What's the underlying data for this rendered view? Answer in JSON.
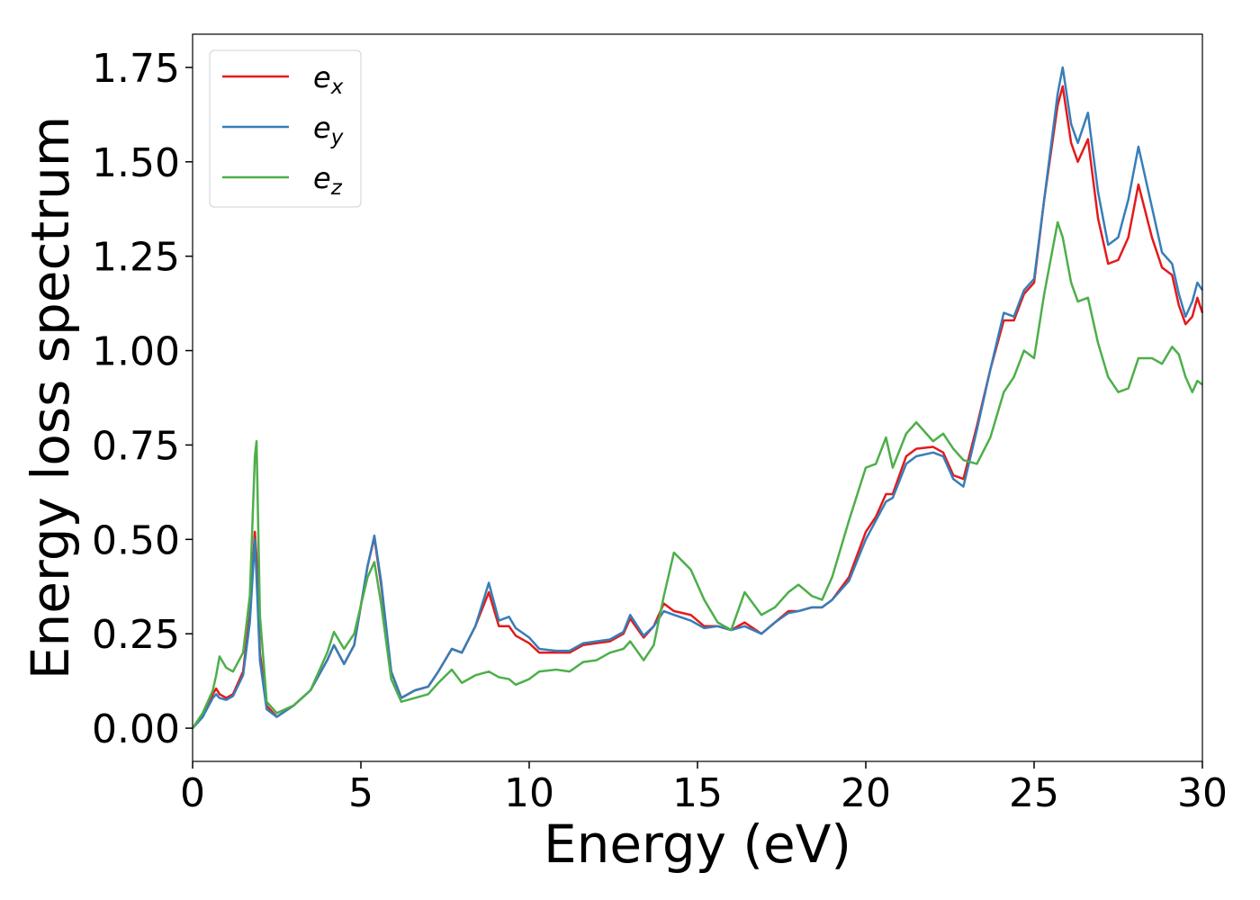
{
  "chart_data": {
    "type": "line",
    "xlabel": "Energy (eV)",
    "ylabel": "Energy loss spectrum",
    "xlim": [
      0,
      30
    ],
    "ylim": [
      -0.088,
      1.838
    ],
    "xticks": [
      0,
      5,
      10,
      15,
      20,
      25,
      30
    ],
    "yticks": [
      {
        "value": 0,
        "label": "0.00"
      },
      {
        "value": 0.25,
        "label": "0.25"
      },
      {
        "value": 0.5,
        "label": "0.50"
      },
      {
        "value": 0.75,
        "label": "0.75"
      },
      {
        "value": 1,
        "label": "1.00"
      },
      {
        "value": 1.25,
        "label": "1.25"
      },
      {
        "value": 1.5,
        "label": "1.50"
      },
      {
        "value": 1.75,
        "label": "1.75"
      }
    ],
    "legend": "upper left",
    "x": [
      0,
      0.3,
      0.6,
      0.7,
      0.8,
      1.0,
      1.2,
      1.5,
      1.7,
      1.85,
      1.9,
      2.0,
      2.2,
      2.5,
      3.0,
      3.5,
      4.0,
      4.2,
      4.5,
      4.8,
      5.2,
      5.4,
      5.6,
      5.9,
      6.2,
      6.6,
      7.0,
      7.3,
      7.7,
      8.0,
      8.4,
      8.8,
      9.1,
      9.4,
      9.6,
      10.0,
      10.3,
      10.8,
      11.2,
      11.6,
      12.0,
      12.4,
      12.8,
      13.0,
      13.4,
      13.7,
      14.0,
      14.3,
      14.8,
      15.2,
      15.6,
      16.0,
      16.4,
      16.9,
      17.3,
      17.7,
      18.0,
      18.4,
      18.7,
      19.0,
      19.5,
      20.0,
      20.3,
      20.6,
      20.8,
      21.2,
      21.5,
      22.0,
      22.3,
      22.6,
      22.9,
      23.3,
      23.7,
      24.1,
      24.4,
      24.7,
      25.0,
      25.3,
      25.7,
      25.85,
      26.1,
      26.3,
      26.6,
      26.9,
      27.2,
      27.5,
      27.8,
      28.1,
      28.5,
      28.8,
      29.1,
      29.3,
      29.5,
      29.7,
      29.85,
      30.0
    ],
    "series": [
      {
        "name": "ex",
        "color": "#e41a1c",
        "values": [
          0,
          0.03,
          0.09,
          0.105,
          0.09,
          0.08,
          0.09,
          0.15,
          0.3,
          0.52,
          0.45,
          0.2,
          0.06,
          0.03,
          0.06,
          0.1,
          0.18,
          0.22,
          0.17,
          0.22,
          0.43,
          0.505,
          0.38,
          0.15,
          0.08,
          0.1,
          0.11,
          0.15,
          0.21,
          0.2,
          0.27,
          0.36,
          0.27,
          0.27,
          0.245,
          0.225,
          0.2,
          0.2,
          0.2,
          0.22,
          0.225,
          0.23,
          0.25,
          0.29,
          0.24,
          0.27,
          0.33,
          0.31,
          0.3,
          0.27,
          0.27,
          0.26,
          0.28,
          0.25,
          0.28,
          0.31,
          0.31,
          0.32,
          0.32,
          0.34,
          0.4,
          0.52,
          0.56,
          0.62,
          0.62,
          0.72,
          0.74,
          0.745,
          0.73,
          0.67,
          0.66,
          0.8,
          0.95,
          1.08,
          1.08,
          1.15,
          1.18,
          1.4,
          1.65,
          1.7,
          1.55,
          1.5,
          1.56,
          1.35,
          1.23,
          1.24,
          1.3,
          1.44,
          1.3,
          1.22,
          1.2,
          1.12,
          1.07,
          1.09,
          1.14,
          1.1
        ]
      },
      {
        "name": "ey",
        "color": "#377eb8",
        "values": [
          0,
          0.03,
          0.08,
          0.09,
          0.08,
          0.075,
          0.085,
          0.14,
          0.28,
          0.5,
          0.4,
          0.18,
          0.05,
          0.03,
          0.06,
          0.1,
          0.18,
          0.22,
          0.17,
          0.22,
          0.43,
          0.51,
          0.39,
          0.15,
          0.08,
          0.1,
          0.11,
          0.15,
          0.21,
          0.2,
          0.27,
          0.385,
          0.285,
          0.295,
          0.265,
          0.24,
          0.21,
          0.205,
          0.205,
          0.225,
          0.23,
          0.235,
          0.255,
          0.3,
          0.245,
          0.27,
          0.31,
          0.3,
          0.285,
          0.265,
          0.27,
          0.26,
          0.27,
          0.25,
          0.28,
          0.305,
          0.31,
          0.32,
          0.32,
          0.34,
          0.39,
          0.5,
          0.55,
          0.6,
          0.61,
          0.7,
          0.72,
          0.73,
          0.72,
          0.66,
          0.64,
          0.79,
          0.95,
          1.1,
          1.09,
          1.16,
          1.19,
          1.4,
          1.68,
          1.75,
          1.6,
          1.55,
          1.63,
          1.42,
          1.28,
          1.3,
          1.4,
          1.54,
          1.38,
          1.26,
          1.23,
          1.15,
          1.09,
          1.13,
          1.18,
          1.16
        ]
      },
      {
        "name": "ez",
        "color": "#4daf4a",
        "values": [
          0,
          0.04,
          0.1,
          0.14,
          0.19,
          0.16,
          0.15,
          0.2,
          0.35,
          0.72,
          0.76,
          0.3,
          0.07,
          0.04,
          0.06,
          0.1,
          0.2,
          0.255,
          0.21,
          0.25,
          0.4,
          0.44,
          0.33,
          0.13,
          0.07,
          0.08,
          0.09,
          0.12,
          0.155,
          0.12,
          0.14,
          0.15,
          0.135,
          0.13,
          0.115,
          0.13,
          0.15,
          0.155,
          0.15,
          0.175,
          0.18,
          0.2,
          0.21,
          0.23,
          0.18,
          0.22,
          0.35,
          0.465,
          0.42,
          0.34,
          0.28,
          0.26,
          0.36,
          0.3,
          0.32,
          0.36,
          0.38,
          0.35,
          0.34,
          0.4,
          0.55,
          0.69,
          0.7,
          0.77,
          0.69,
          0.78,
          0.81,
          0.76,
          0.78,
          0.74,
          0.71,
          0.7,
          0.77,
          0.89,
          0.93,
          1.0,
          0.98,
          1.15,
          1.34,
          1.3,
          1.18,
          1.13,
          1.14,
          1.02,
          0.93,
          0.89,
          0.9,
          0.98,
          0.98,
          0.965,
          1.01,
          0.99,
          0.93,
          0.89,
          0.92,
          0.91
        ]
      }
    ]
  }
}
